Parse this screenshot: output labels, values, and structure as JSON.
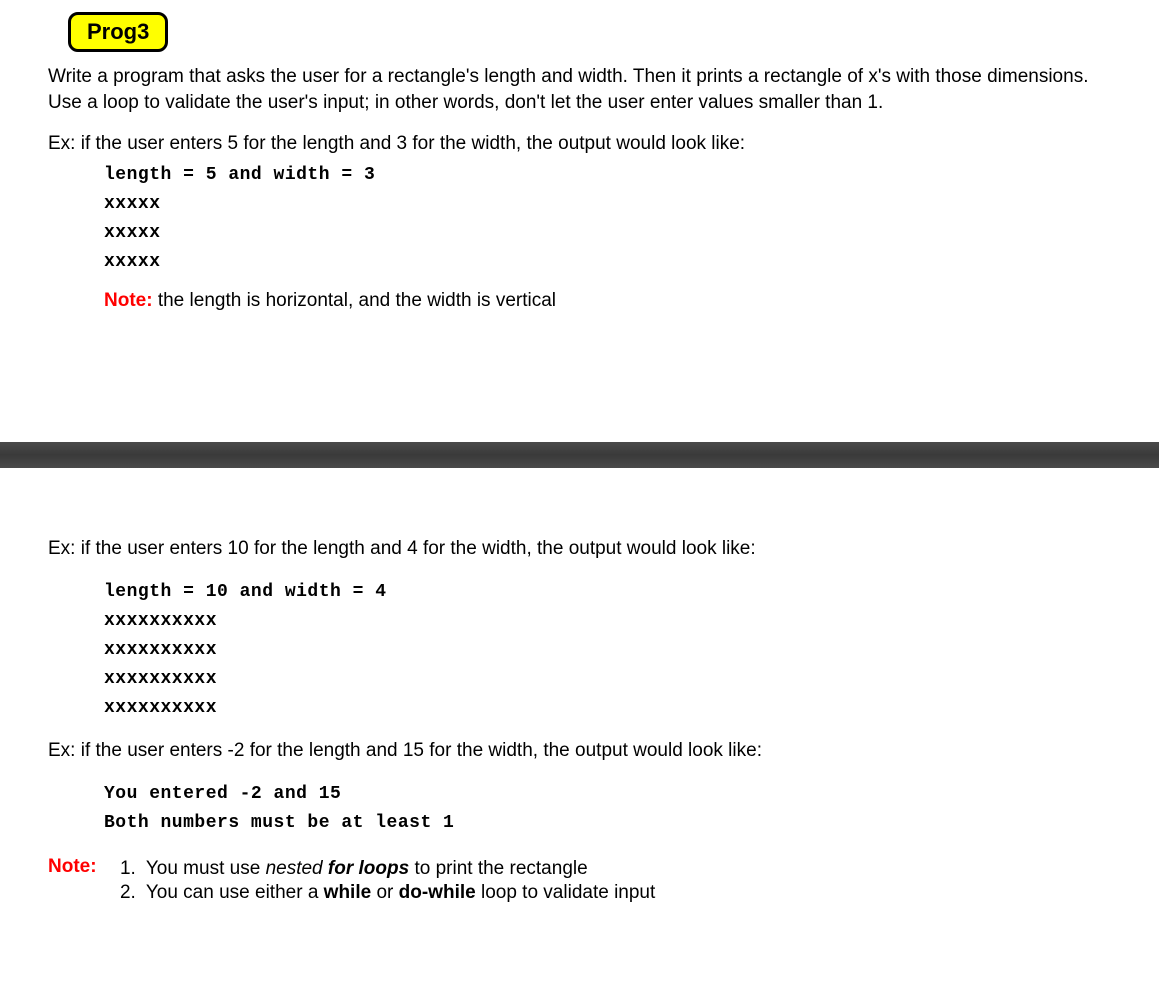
{
  "badge": {
    "label": "Prog3",
    "bg_color": "#ffff00",
    "border_color": "#000000"
  },
  "intro": "Write a program that asks the user for a rectangle's length and width. Then it prints a rectangle  of x's with those dimensions. Use a loop to validate the user's input; in other words, don't let the user enter values smaller than 1.",
  "example1": {
    "intro": "Ex: if the user enters 5 for the length and 3 for the width, the output would look like:",
    "code": "length = 5 and width = 3\nxxxxx\nxxxxx\nxxxxx"
  },
  "note1": {
    "label": "Note:",
    "text": " the length is horizontal, and the width is vertical"
  },
  "example2": {
    "intro": "Ex: if the user enters 10 for the length and 4 for the width, the output would look like:",
    "code": "length = 10 and width = 4\nxxxxxxxxxx\nxxxxxxxxxx\nxxxxxxxxxx\nxxxxxxxxxx"
  },
  "example3": {
    "intro": "Ex: if the user enters -2 for the length and 15 for the width, the output would look like:",
    "code": "You entered -2 and 15\nBoth numbers must be at least 1"
  },
  "final_note": {
    "label": "Note:",
    "items": [
      {
        "num": "1.",
        "pre": "You must use ",
        "em": "nested",
        "em2": " for loops",
        "post": " to print the rectangle"
      },
      {
        "num": "2.",
        "pre": "You can use either a ",
        "b1": "while",
        "mid": " or ",
        "b2": "do-while",
        "post": " loop to validate input"
      }
    ]
  },
  "colors": {
    "note_label": "#ff0000",
    "text": "#000000",
    "divider": "#3d3d3d"
  }
}
